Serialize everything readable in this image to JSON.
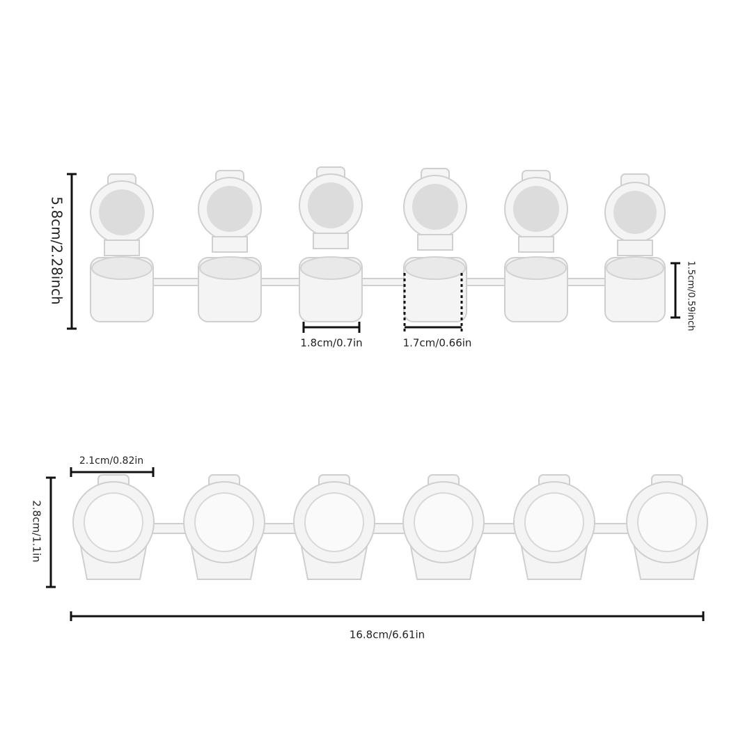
{
  "top_view": {
    "height": "5.8cm/2.28inch",
    "cup_width": "1.8cm/0.7in",
    "cup_body_width": "1.7cm/0.66in",
    "cup_height": "1.5cm/0.59inch"
  },
  "bottom_view": {
    "lid_width": "2.1cm/0.82in",
    "height": "2.8cm/1.1in",
    "total_length": "16.8cm/6.61in"
  }
}
